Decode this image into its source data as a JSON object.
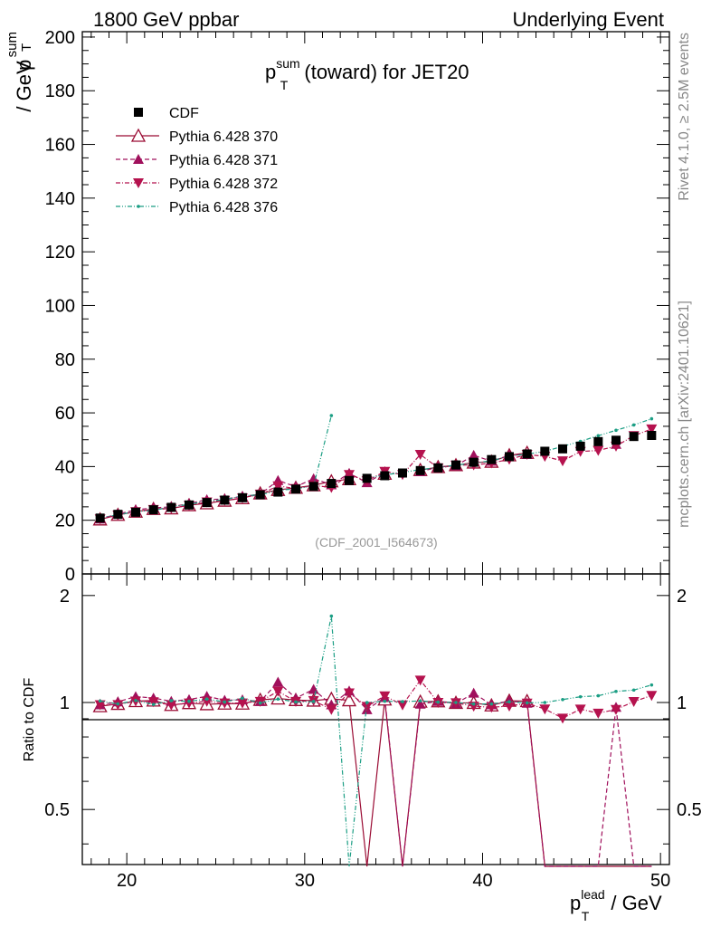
{
  "header": {
    "left": "1800 GeV ppbar",
    "right": "Underlying Event"
  },
  "side": {
    "top": "Rivet 4.1.0, ≥ 2.5M events",
    "bottom": "mcplots.cern.ch [arXiv:2401.10621]"
  },
  "chart_data": {
    "type": "line",
    "title": {
      "base": "p",
      "sup": "sum",
      "sub": "T",
      "rest": " (toward) for JET20"
    },
    "ylabel": {
      "base": "p",
      "sup": "sum",
      "sub": "T",
      "rest": " / GeV"
    },
    "xlabel": {
      "base": "p",
      "sup": "lead",
      "sub": "T",
      "rest": " / GeV"
    },
    "ratio_ylabel": "Ratio to CDF",
    "watermark": "(CDF_2001_I564673)",
    "xlim": [
      17.5,
      50.5
    ],
    "ylim": [
      0,
      202
    ],
    "ratio_ylim": [
      0.35,
      2.3
    ],
    "x_ticks": [
      "20",
      "30",
      "40",
      "50"
    ],
    "y_ticks": [
      "0",
      "20",
      "40",
      "60",
      "80",
      "100",
      "120",
      "140",
      "160",
      "180",
      "200"
    ],
    "ratio_ticks": [
      "0.5",
      "1",
      "2"
    ],
    "x": [
      18.5,
      19.5,
      20.5,
      21.5,
      22.5,
      23.5,
      24.5,
      25.5,
      26.5,
      27.5,
      28.5,
      29.5,
      30.5,
      31.5,
      32.5,
      33.5,
      34.5,
      35.5,
      36.5,
      37.5,
      38.5,
      39.5,
      40.5,
      41.5,
      42.5,
      43.5,
      44.5,
      45.5,
      46.5,
      47.5,
      48.5,
      49.5
    ],
    "series": [
      {
        "name": "CDF",
        "color": "#000000",
        "marker": "square",
        "values": [
          20.8,
          22.2,
          23.0,
          23.9,
          24.8,
          25.7,
          26.6,
          27.5,
          28.4,
          29.5,
          30.5,
          31.6,
          32.6,
          33.7,
          34.8,
          35.6,
          36.6,
          37.6,
          38.5,
          39.5,
          40.6,
          41.6,
          42.6,
          43.7,
          44.7,
          45.7,
          46.6,
          47.6,
          49.3,
          49.8,
          51.2,
          51.6
        ]
      },
      {
        "name": "Pythia 6.428 370",
        "color": "#9a0b33",
        "marker": "triangle-open",
        "values": [
          20.3,
          22.0,
          23.2,
          24.2,
          24.4,
          25.6,
          26.3,
          27.3,
          28.2,
          30.0,
          31.3,
          32.1,
          33.0,
          34.5,
          35.3,
          null,
          37.3,
          null,
          38.7,
          39.8,
          40.5,
          41.5,
          41.8,
          44.2,
          45.1,
          null,
          null,
          null,
          null,
          null,
          null,
          null
        ]
      },
      {
        "name": "Pythia 6.428 371",
        "color": "#a0105c",
        "marker": "triangle-up",
        "values": [
          20.5,
          22.3,
          23.9,
          24.6,
          25.0,
          26.2,
          27.7,
          27.9,
          28.9,
          29.7,
          34.8,
          32.5,
          35.5,
          33.2,
          37.5,
          34.0,
          37.8,
          null,
          38.1,
          39.8,
          40.3,
          44.2,
          42.0,
          44.2,
          44.5,
          null,
          null,
          null,
          null,
          48.3,
          null,
          null
        ]
      },
      {
        "name": "Pythia 6.428 372",
        "color": "#b5124e",
        "marker": "triangle-down",
        "values": [
          20.5,
          21.9,
          23.2,
          24.0,
          24.4,
          25.6,
          26.8,
          27.4,
          28.3,
          29.7,
          32.8,
          31.8,
          33.0,
          32.2,
          37.0,
          34.7,
          38.2,
          37.0,
          44.5,
          39.5,
          40.5,
          40.6,
          41.3,
          42.7,
          44.5,
          43.8,
          42.1,
          45.6,
          46.0,
          47.6,
          51.5,
          54.0
        ]
      },
      {
        "name": "Pythia 6.428 376",
        "color": "#1b9e84",
        "marker": "dot",
        "values": [
          21.0,
          22.0,
          23.3,
          23.6,
          25.1,
          25.9,
          27.2,
          27.6,
          29.2,
          29.4,
          31.2,
          31.7,
          32.8,
          59.0,
          null,
          35.6,
          36.9,
          37.8,
          38.9,
          39.6,
          40.6,
          41.2,
          42.2,
          43.9,
          44.6,
          45.7,
          47.5,
          49.4,
          51.5,
          53.5,
          55.5,
          57.8
        ]
      }
    ]
  }
}
